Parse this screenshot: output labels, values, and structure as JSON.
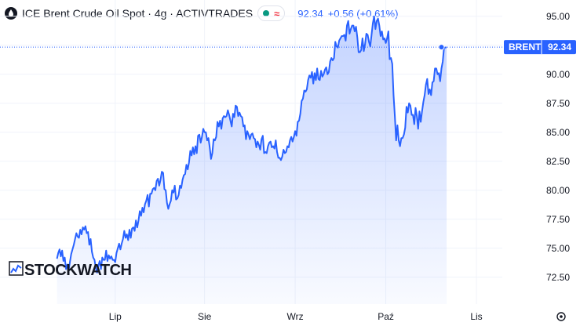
{
  "header": {
    "title": "ICE Brent Crude Oil Spot · 4g · ACTIVTRADES",
    "status_icon": "≈",
    "price": "92.34",
    "change": "+0.56 (+0.61%)"
  },
  "watermark": {
    "text": "STOCKWATCH"
  },
  "settings_icon": "gear-icon",
  "colors": {
    "line": "#2962ff",
    "area": "#2962ff",
    "text": "#131722",
    "status_green": "#089981",
    "status_red": "#f23645",
    "tag_bg": "#2962ff"
  },
  "chart_data": {
    "type": "area",
    "ylim": [
      71,
      96
    ],
    "y_ticks": [
      72.5,
      75.0,
      77.5,
      80.0,
      82.5,
      85.0,
      87.5,
      90.0,
      92.5,
      95.0
    ],
    "y_tick_labels": [
      "72.50",
      "75.00",
      "77.50",
      "80.00",
      "82.50",
      "85.00",
      "87.50",
      "90.00",
      "92.50",
      "95.00"
    ],
    "x_ticks": [
      {
        "label": "Lip",
        "index": 45
      },
      {
        "label": "Sie",
        "index": 114
      },
      {
        "label": "Wrz",
        "index": 184
      },
      {
        "label": "Paź",
        "index": 254
      },
      {
        "label": "Lis",
        "index": 324
      }
    ],
    "x_range": [
      -44,
      344
    ],
    "last_index": 297,
    "last_value": 92.34,
    "last_label": "BRENT",
    "series": [
      {
        "values": [
          74.1,
          74.6,
          74.9,
          74.3,
          74.8,
          73.9,
          74.2,
          73.2,
          73.6,
          73.1,
          73.8,
          74.5,
          74.9,
          75.3,
          75.8,
          76.3,
          76.0,
          75.9,
          76.6,
          76.2,
          76.8,
          76.6,
          76.9,
          76.3,
          76.4,
          75.3,
          75.8,
          74.7,
          74.2,
          74.0,
          73.3,
          72.9,
          73.5,
          73.9,
          73.2,
          74.2,
          74.0,
          74.0,
          74.8,
          73.9,
          74.4,
          74.1,
          74.3,
          74.0,
          74.0,
          73.8,
          74.6,
          75.0,
          75.4,
          74.9,
          75.4,
          75.8,
          76.5,
          75.9,
          76.2,
          75.7,
          76.6,
          75.9,
          76.7,
          76.8,
          76.5,
          77.4,
          76.8,
          77.4,
          78.2,
          77.8,
          78.5,
          78.1,
          78.8,
          79.1,
          79.6,
          78.6,
          79.7,
          79.7,
          80.1,
          80.2,
          80.0,
          80.8,
          81.0,
          80.4,
          80.9,
          81.6,
          81.5,
          80.1,
          80.0,
          78.9,
          78.4,
          78.8,
          79.1,
          80.0,
          79.8,
          80.4,
          79.2,
          79.3,
          79.6,
          80.4,
          80.2,
          80.9,
          81.3,
          81.4,
          82.2,
          81.8,
          82.4,
          83.4,
          83.0,
          83.7,
          83.1,
          83.8,
          83.2,
          84.7,
          84.8,
          84.1,
          84.6,
          85.3,
          85.0,
          85.0,
          84.3,
          84.5,
          83.7,
          82.7,
          83.2,
          84.4,
          84.3,
          84.6,
          85.9,
          85.5,
          86.0,
          85.3,
          86.2,
          86.4,
          86.3,
          86.4,
          86.9,
          86.5,
          86.0,
          85.5,
          86.6,
          86.3,
          87.3,
          87.2,
          86.4,
          86.7,
          86.4,
          86.3,
          85.5,
          85.6,
          84.4,
          85.1,
          84.8,
          84.4,
          84.8,
          84.9,
          84.5,
          84.4,
          83.7,
          84.2,
          83.9,
          83.5,
          84.4,
          84.7,
          83.2,
          83.3,
          83.2,
          83.8,
          84.1,
          84.2,
          83.7,
          83.8,
          83.6,
          84.3,
          83.3,
          82.8,
          82.8,
          82.6,
          82.9,
          83.5,
          83.2,
          83.3,
          83.8,
          83.7,
          84.3,
          84.6,
          84.2,
          84.6,
          85.1,
          84.7,
          85.9,
          86.0,
          86.6,
          87.7,
          87.9,
          88.6,
          88.5,
          88.7,
          89.5,
          89.9,
          89.7,
          90.2,
          89.2,
          90.1,
          89.5,
          90.5,
          89.6,
          89.5,
          90.3,
          89.8,
          90.0,
          90.4,
          90.6,
          90.0,
          90.2,
          91.1,
          91.4,
          91.2,
          91.4,
          92.8,
          92.4,
          92.3,
          92.9,
          93.1,
          93.3,
          93.3,
          93.4,
          92.9,
          94.2,
          94.6,
          93.5,
          93.9,
          94.2,
          94.2,
          93.7,
          94.1,
          93.2,
          91.9,
          91.9,
          92.1,
          93.1,
          92.0,
          92.6,
          93.5,
          93.4,
          92.8,
          92.4,
          93.4,
          94.4,
          95.0,
          93.9,
          94.6,
          94.8,
          94.2,
          93.3,
          93.7,
          93.0,
          93.1,
          92.7,
          93.1,
          93.7,
          91.3,
          91.4,
          90.9,
          88.2,
          86.4,
          84.3,
          85.6,
          84.3,
          83.8,
          84.5,
          84.5,
          84.8,
          85.4,
          87.2,
          86.7,
          87.5,
          87.3,
          86.5,
          86.5,
          85.7,
          87.1,
          86.4,
          85.3,
          86.8,
          85.9,
          86.8,
          87.6,
          88.2,
          89.1,
          89.6,
          88.3,
          88.7,
          88.2,
          89.3,
          89.4,
          90.5,
          90.5,
          90.0,
          90.1,
          89.4,
          90.5,
          91.1,
          92.3,
          92.3,
          92.34
        ]
      }
    ]
  }
}
